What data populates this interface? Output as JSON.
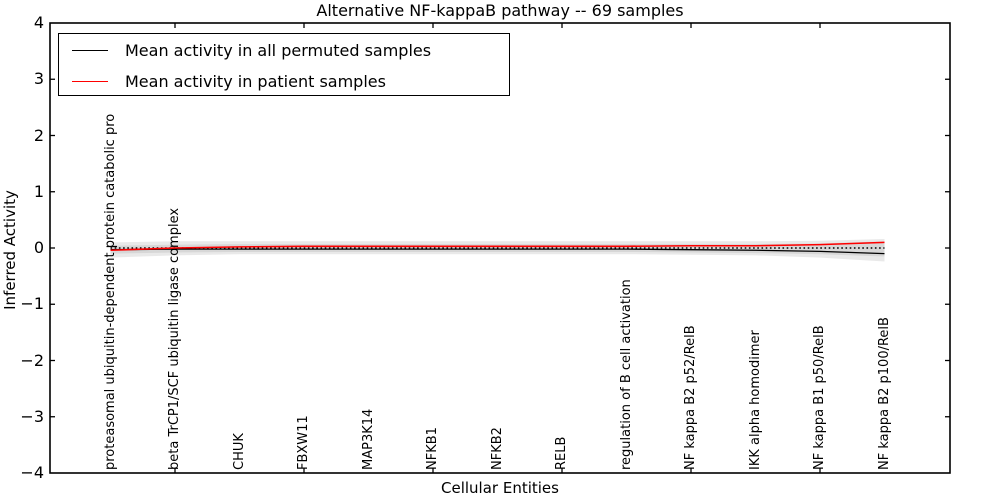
{
  "title": "Alternative NF-kappaB pathway -- 69 samples",
  "xlabel": "Cellular Entities",
  "ylabel": "Inferred Activity",
  "legend": {
    "entries": [
      {
        "label": "Mean activity in all permuted samples",
        "color": "#000000"
      },
      {
        "label": "Mean activity in patient samples",
        "color": "#ff0000"
      }
    ]
  },
  "chart_data": {
    "type": "line",
    "title": "Alternative NF-kappaB pathway -- 69 samples",
    "xlabel": "Cellular Entities",
    "ylabel": "Inferred Activity",
    "ylim": [
      -4,
      4
    ],
    "yticks": [
      4,
      3,
      2,
      1,
      0,
      -1,
      -2,
      -3,
      -4
    ],
    "grid": false,
    "legend_position": "upper left",
    "categories": [
      "proteasomal ubiquitin-dependent protein catabolic pro",
      "beta TrCP1/SCF ubiquitin ligase complex",
      "CHUK",
      "FBXW11",
      "MAP3K14",
      "NFKB1",
      "NFKB2",
      "RELB",
      "regulation of B cell activation",
      "NF kappa B2 p52/RelB",
      "IKK alpha homodimer",
      "NF kappa B1 p50/RelB",
      "NF kappa B2 p100/RelB"
    ],
    "series": [
      {
        "name": "Mean activity in all permuted samples",
        "color": "#000000",
        "style": "solid",
        "values": [
          -0.03,
          -0.02,
          -0.02,
          -0.02,
          -0.02,
          -0.02,
          -0.02,
          -0.02,
          -0.02,
          -0.03,
          -0.04,
          -0.06,
          -0.1
        ]
      },
      {
        "name": "Mean activity in patient samples",
        "color": "#ff0000",
        "style": "solid",
        "values": [
          -0.04,
          0.0,
          0.02,
          0.03,
          0.03,
          0.03,
          0.03,
          0.03,
          0.03,
          0.04,
          0.04,
          0.06,
          0.1
        ]
      },
      {
        "name": "zero reference",
        "color": "#000000",
        "style": "dotted",
        "values": [
          0,
          0,
          0,
          0,
          0,
          0,
          0,
          0,
          0,
          0,
          0,
          0,
          0
        ]
      }
    ],
    "bands": [
      {
        "name": "permutation spread outer",
        "color": "rgba(0,0,0,0.085)",
        "top": [
          0.1,
          0.12,
          0.12,
          0.12,
          0.12,
          0.12,
          0.12,
          0.12,
          0.12,
          0.12,
          0.12,
          0.13,
          0.16
        ],
        "bottom": [
          -0.17,
          -0.13,
          -0.11,
          -0.11,
          -0.11,
          -0.11,
          -0.11,
          -0.11,
          -0.11,
          -0.12,
          -0.13,
          -0.17,
          -0.24
        ]
      },
      {
        "name": "permutation spread inner",
        "color": "rgba(0,0,0,0.075)",
        "top": [
          0.04,
          0.06,
          0.07,
          0.07,
          0.07,
          0.07,
          0.07,
          0.07,
          0.07,
          0.07,
          0.07,
          0.08,
          0.12
        ],
        "bottom": [
          -0.1,
          -0.08,
          -0.07,
          -0.07,
          -0.07,
          -0.07,
          -0.07,
          -0.07,
          -0.07,
          -0.08,
          -0.09,
          -0.11,
          -0.15
        ]
      }
    ]
  }
}
